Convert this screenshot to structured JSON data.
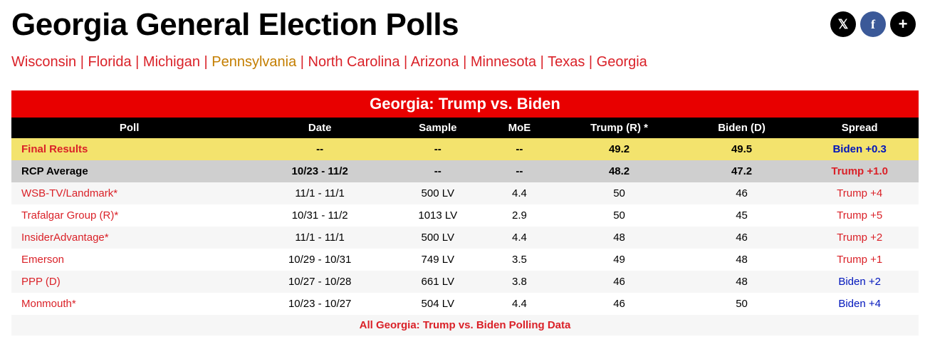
{
  "page_title": "Georgia General Election Polls",
  "share": {
    "x_label": "𝕏",
    "f_label": "f",
    "plus_label": "+"
  },
  "nav": {
    "items": [
      {
        "label": "Wisconsin",
        "active": false
      },
      {
        "label": "Florida",
        "active": false
      },
      {
        "label": "Michigan",
        "active": false
      },
      {
        "label": "Pennsylvania",
        "active": true
      },
      {
        "label": "North Carolina",
        "active": false
      },
      {
        "label": "Arizona",
        "active": false
      },
      {
        "label": "Minnesota",
        "active": false
      },
      {
        "label": "Texas",
        "active": false
      },
      {
        "label": "Georgia",
        "active": false
      }
    ],
    "separator": " | "
  },
  "table": {
    "title": "Georgia: Trump vs. Biden",
    "columns": [
      "Poll",
      "Date",
      "Sample",
      "MoE",
      "Trump (R) *",
      "Biden (D)",
      "Spread"
    ],
    "final": {
      "poll": "Final Results",
      "date": "--",
      "sample": "--",
      "moe": "--",
      "a": "49.2",
      "b": "49.5",
      "spread": "Biden +0.3",
      "spread_party": "D"
    },
    "average": {
      "poll": "RCP Average",
      "date": "10/23 - 11/2",
      "sample": "--",
      "moe": "--",
      "a": "48.2",
      "b": "47.2",
      "spread": "Trump +1.0",
      "spread_party": "R"
    },
    "rows": [
      {
        "poll": "WSB-TV/Landmark*",
        "date": "11/1 - 11/1",
        "sample": "500 LV",
        "moe": "4.4",
        "a": "50",
        "b": "46",
        "spread": "Trump +4",
        "spread_party": "R"
      },
      {
        "poll": "Trafalgar Group (R)*",
        "date": "10/31 - 11/2",
        "sample": "1013 LV",
        "moe": "2.9",
        "a": "50",
        "b": "45",
        "spread": "Trump +5",
        "spread_party": "R"
      },
      {
        "poll": "InsiderAdvantage*",
        "date": "11/1 - 11/1",
        "sample": "500 LV",
        "moe": "4.4",
        "a": "48",
        "b": "46",
        "spread": "Trump +2",
        "spread_party": "R"
      },
      {
        "poll": "Emerson",
        "date": "10/29 - 10/31",
        "sample": "749 LV",
        "moe": "3.5",
        "a": "49",
        "b": "48",
        "spread": "Trump +1",
        "spread_party": "R"
      },
      {
        "poll": "PPP (D)",
        "date": "10/27 - 10/28",
        "sample": "661 LV",
        "moe": "3.8",
        "a": "46",
        "b": "48",
        "spread": "Biden +2",
        "spread_party": "D"
      },
      {
        "poll": "Monmouth*",
        "date": "10/23 - 10/27",
        "sample": "504 LV",
        "moe": "4.4",
        "a": "46",
        "b": "50",
        "spread": "Biden +4",
        "spread_party": "D"
      }
    ],
    "all_data_label": "All Georgia: Trump vs. Biden Polling Data"
  },
  "colors": {
    "brand_red": "#e80000",
    "link_red": "#da2128",
    "active_amber": "#c47e00",
    "dem_blue": "#0015bc",
    "final_bg": "#f3e36d",
    "avg_bg": "#cfcfcf",
    "stripe_bg": "#f6f6f6"
  }
}
